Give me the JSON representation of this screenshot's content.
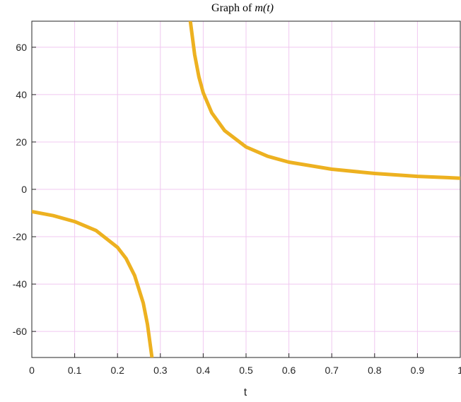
{
  "chart_data": {
    "type": "line",
    "title_prefix": "Graph of ",
    "title_math": "m(t)",
    "xlabel": "t",
    "ylabel": "",
    "xlim": [
      0,
      1
    ],
    "ylim": [
      -71,
      71
    ],
    "xticks": [
      0,
      0.1,
      0.2,
      0.3,
      0.4,
      0.5,
      0.6,
      0.7,
      0.8,
      0.9,
      1
    ],
    "xtick_labels": [
      "0",
      "0.1",
      "0.2",
      "0.3",
      "0.4",
      "0.5",
      "0.6",
      "0.7",
      "0.8",
      "0.9",
      "1"
    ],
    "yticks": [
      -60,
      -40,
      -20,
      0,
      20,
      40,
      60
    ],
    "ytick_labels": [
      "-60",
      "-40",
      "-20",
      "0",
      "20",
      "40",
      "60"
    ],
    "grid": true,
    "grid_color": "#f0c8f0",
    "line_color": "#edb120",
    "series": [
      {
        "segments": [
          {
            "x": [
              0,
              0.05,
              0.1,
              0.15,
              0.2,
              0.22,
              0.24,
              0.26,
              0.27,
              0.28,
              0.29
            ],
            "y": [
              -9.4,
              -11.1,
              -13.6,
              -17.4,
              -24.5,
              -29.2,
              -36.4,
              -48.0,
              -57.1,
              -70.5,
              -90.0
            ]
          },
          {
            "x": [
              0.36,
              0.37,
              0.38,
              0.39,
              0.4,
              0.42,
              0.45,
              0.5,
              0.55,
              0.6,
              0.7,
              0.8,
              0.9,
              1.0
            ],
            "y": [
              90.0,
              71.0,
              56.9,
              47.5,
              40.8,
              32.3,
              24.8,
              17.9,
              14.0,
              11.5,
              8.5,
              6.7,
              5.5,
              4.7
            ]
          }
        ]
      }
    ]
  }
}
